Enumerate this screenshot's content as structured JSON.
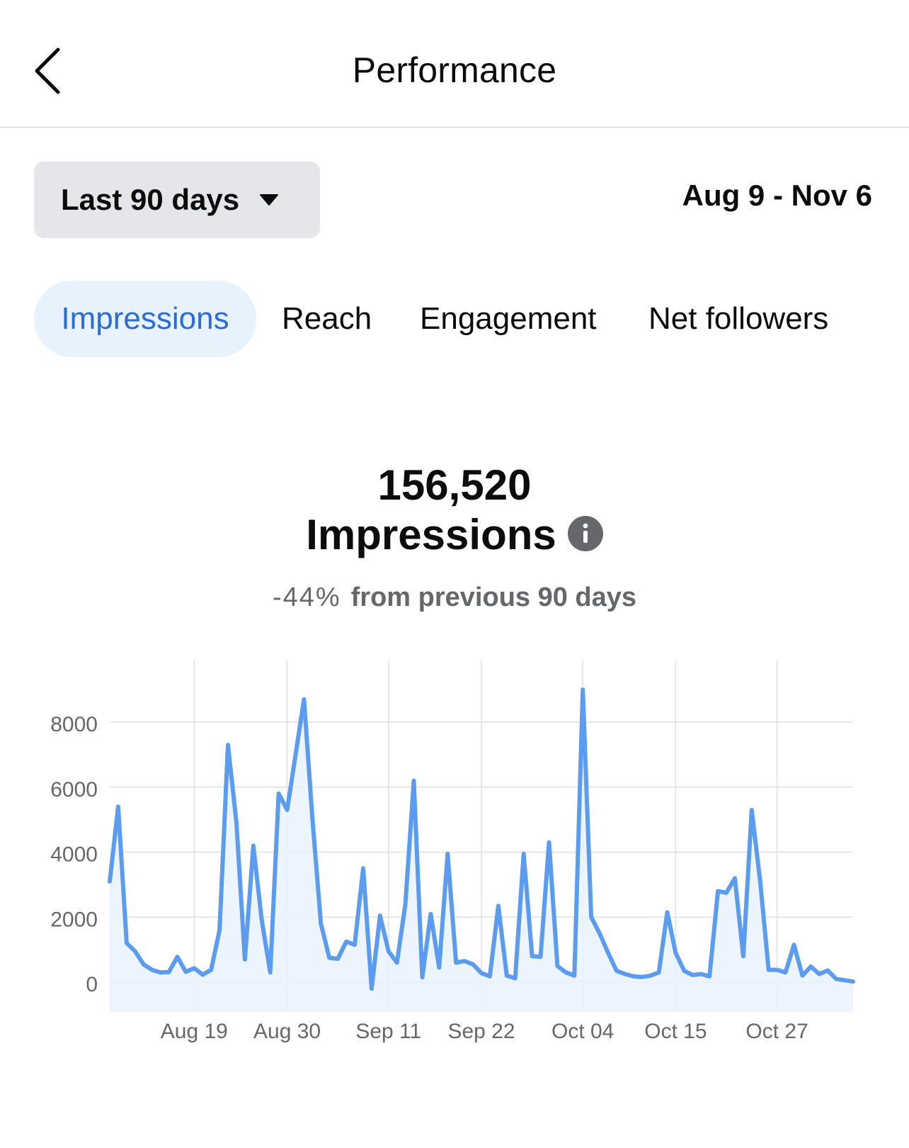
{
  "header": {
    "title": "Performance",
    "back_icon": "chevron-left-icon"
  },
  "filters": {
    "range_label": "Last 90 days",
    "range_icon": "caret-down-icon",
    "date_range": "Aug 9 - Nov 6"
  },
  "tabs": [
    {
      "label": "Impressions",
      "active": true
    },
    {
      "label": "Reach",
      "active": false
    },
    {
      "label": "Engagement",
      "active": false
    },
    {
      "label": "Net followers",
      "active": false
    }
  ],
  "summary": {
    "value": "156,520",
    "metric": "Impressions",
    "info_icon": "info-icon",
    "delta_pct": "-44%",
    "delta_text": "from previous 90 days"
  },
  "colors": {
    "accent": "#2b6cd6",
    "active_tab_bg": "#e8f2fd",
    "line": "#5b9bf0",
    "area": "#e9f2fd",
    "grid": "#e0e0e0",
    "muted": "#65676b"
  },
  "chart_data": {
    "type": "area",
    "x_start": "Aug 9",
    "x_end": "Nov 6",
    "x_ticks": [
      {
        "label": "Aug 19",
        "day": 10
      },
      {
        "label": "Aug 30",
        "day": 21
      },
      {
        "label": "Sep 11",
        "day": 33
      },
      {
        "label": "Sep 22",
        "day": 44
      },
      {
        "label": "Oct 04",
        "day": 56
      },
      {
        "label": "Oct 15",
        "day": 67
      },
      {
        "label": "Oct 27",
        "day": 79
      }
    ],
    "y_ticks": [
      "0",
      "2000",
      "4000",
      "6000",
      "8000"
    ],
    "ylim": [
      -900,
      9800
    ],
    "grid": true,
    "series": [
      {
        "values": [
          3100,
          5400,
          1200,
          950,
          550,
          380,
          300,
          310,
          780,
          320,
          430,
          230,
          380,
          1600,
          7300,
          4900,
          700,
          4200,
          1900,
          300,
          5800,
          5300,
          7000,
          8700,
          5000,
          1800,
          750,
          720,
          1250,
          1150,
          3500,
          -200,
          2050,
          950,
          600,
          2400,
          6200,
          150,
          2100,
          450,
          3950,
          600,
          650,
          550,
          280,
          180,
          2350,
          200,
          120,
          3950,
          800,
          780,
          4300,
          500,
          300,
          200,
          9000,
          2000,
          1500,
          900,
          350,
          250,
          180,
          160,
          200,
          300,
          2150,
          900,
          350,
          220,
          250,
          180,
          2800,
          2750,
          3200,
          800,
          5300,
          3100,
          380,
          380,
          300,
          1150,
          200,
          480,
          250,
          360,
          100,
          60,
          20
        ]
      }
    ]
  }
}
